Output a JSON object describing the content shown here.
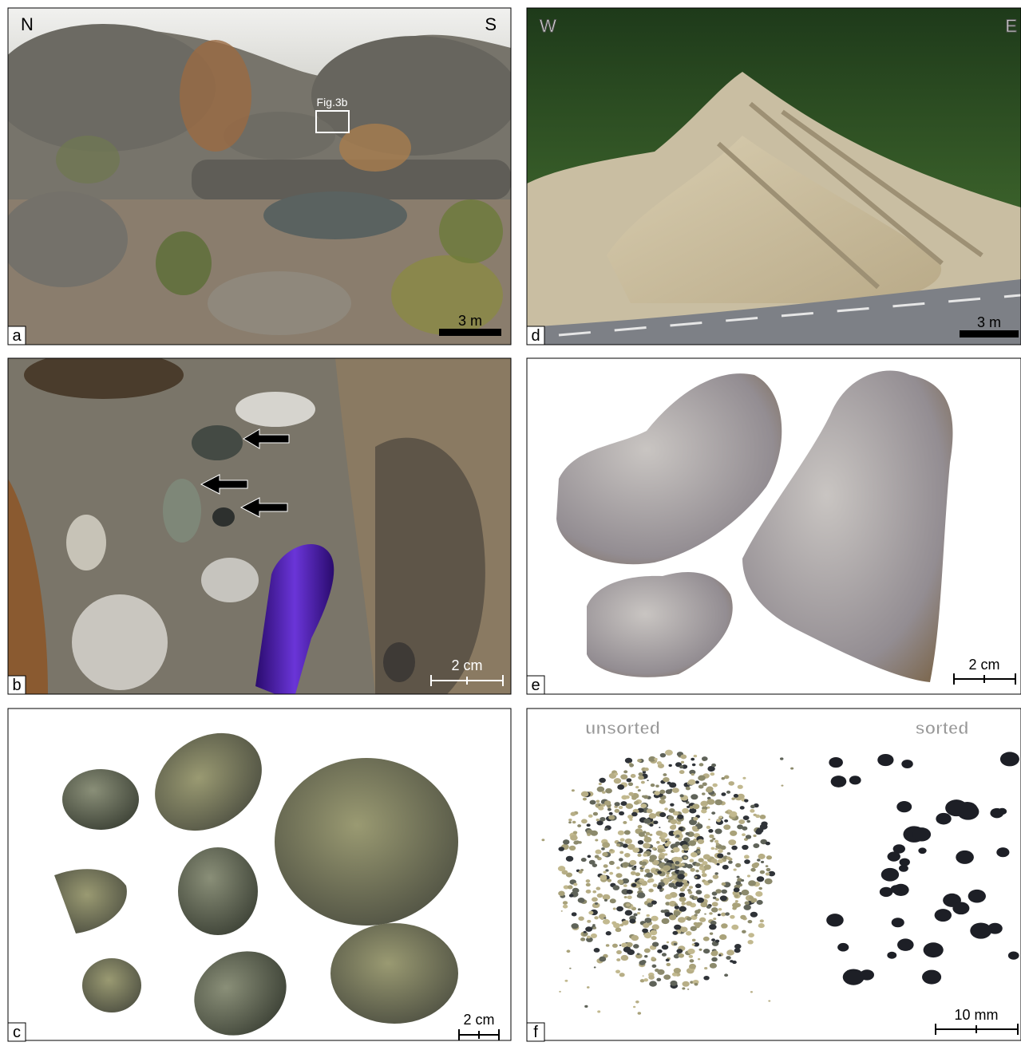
{
  "panels": [
    {
      "label": "a",
      "corner_labels": [
        "N",
        "S"
      ],
      "annotation": "Fig.3b",
      "scale_bar": "3 m"
    },
    {
      "label": "d",
      "corner_labels": [
        "W",
        "E"
      ],
      "scale_bar": "3 m"
    },
    {
      "label": "b",
      "scale_bar": "2 cm"
    },
    {
      "label": "e",
      "scale_bar": "2 cm"
    },
    {
      "label": "c",
      "scale_bar": "2 cm"
    },
    {
      "label": "f",
      "captions": [
        "unsorted",
        "sorted"
      ],
      "scale_bar": "10 mm"
    }
  ]
}
